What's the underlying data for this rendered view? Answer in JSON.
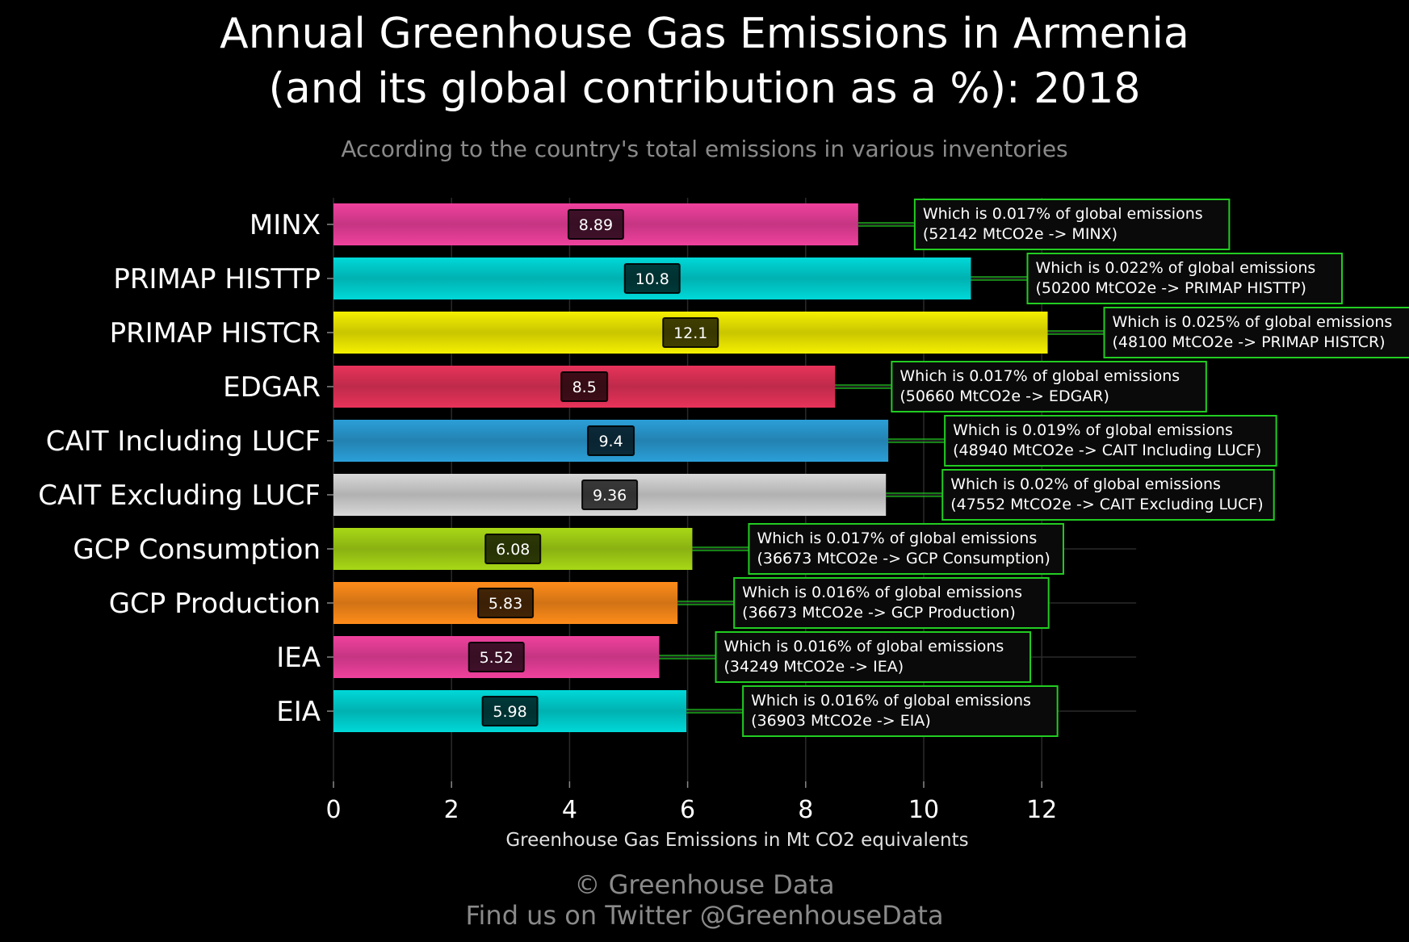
{
  "title_line1": "Annual Greenhouse Gas Emissions in Armenia",
  "title_line2": "(and its global contribution as a %): 2018",
  "subtitle": "According to the country's total emissions in various inventories",
  "footer_line1": "© Greenhouse Data",
  "footer_line2": "Find us on Twitter @GreenhouseData",
  "chart_data": {
    "type": "bar",
    "orientation": "horizontal",
    "xlabel": "Greenhouse Gas Emissions in Mt CO2 equivalents",
    "xlim": [
      0,
      13.6
    ],
    "xticks": [
      0,
      2,
      4,
      6,
      8,
      10,
      12
    ],
    "grid": true,
    "categories": [
      "MINX",
      "PRIMAP HISTTP",
      "PRIMAP HISTCR",
      "EDGAR",
      "CAIT Including LUCF",
      "CAIT Excluding LUCF",
      "GCP Consumption",
      "GCP Production",
      "IEA",
      "EIA"
    ],
    "values": [
      8.89,
      10.8,
      12.1,
      8.5,
      9.4,
      9.36,
      6.08,
      5.83,
      5.52,
      5.98
    ],
    "value_labels": [
      "8.89",
      "10.8",
      "12.1",
      "8.5",
      "9.4",
      "9.36",
      "6.08",
      "5.83",
      "5.52",
      "5.98"
    ],
    "colors": [
      "#f0419e",
      "#00d8d8",
      "#f5f000",
      "#e8335a",
      "#2b9fd8",
      "#d8d8d8",
      "#a8d816",
      "#ff8c1a",
      "#f0419e",
      "#00d8d8"
    ],
    "annotations": [
      {
        "line1": "Which is 0.017% of global emissions",
        "line2": "(52142 MtCO2e -> MINX)"
      },
      {
        "line1": "Which is 0.022% of global emissions",
        "line2": "(50200 MtCO2e -> PRIMAP HISTTP)"
      },
      {
        "line1": "Which is 0.025% of global emissions",
        "line2": "(48100 MtCO2e -> PRIMAP HISTCR)"
      },
      {
        "line1": "Which is 0.017% of global emissions",
        "line2": "(50660 MtCO2e -> EDGAR)"
      },
      {
        "line1": "Which is 0.019% of global emissions",
        "line2": "(48940 MtCO2e -> CAIT Including LUCF)"
      },
      {
        "line1": "Which is 0.02% of global emissions",
        "line2": "(47552 MtCO2e -> CAIT Excluding LUCF)"
      },
      {
        "line1": "Which is 0.017% of global emissions",
        "line2": "(36673 MtCO2e -> GCP Consumption)"
      },
      {
        "line1": "Which is 0.016% of global emissions",
        "line2": "(36673 MtCO2e -> GCP Production)"
      },
      {
        "line1": "Which is 0.016% of global emissions",
        "line2": "(34249 MtCO2e -> IEA)"
      },
      {
        "line1": "Which is 0.016% of global emissions",
        "line2": "(36903 MtCO2e -> EIA)"
      }
    ],
    "annotation_border_color": "#22cc22",
    "connector_color": "#22cc22"
  }
}
